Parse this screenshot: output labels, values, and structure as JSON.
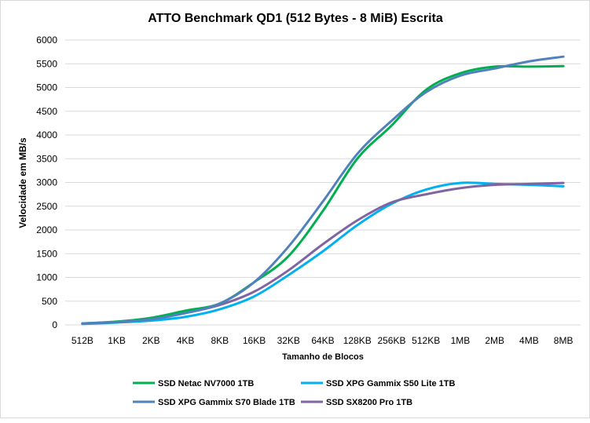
{
  "chart_data": {
    "type": "line",
    "title": "ATTO Benchmark QD1 (512 Bytes - 8 MiB) Escrita",
    "xlabel": "Tamanho de Blocos",
    "ylabel": "Velocidade em MB/s",
    "ylim": [
      0,
      6000
    ],
    "yticks": [
      0,
      500,
      1000,
      1500,
      2000,
      2500,
      3000,
      3500,
      4000,
      4500,
      5000,
      5500,
      6000
    ],
    "grid": true,
    "legend_position": "bottom",
    "categories": [
      "512B",
      "1KB",
      "2KB",
      "4KB",
      "8KB",
      "16KB",
      "32KB",
      "64KB",
      "128KB",
      "256KB",
      "512KB",
      "1MB",
      "2MB",
      "4MB",
      "8MB"
    ],
    "series": [
      {
        "name": "SSD Netac NV7000 1TB",
        "color": "#00B050",
        "values": [
          30,
          70,
          150,
          300,
          450,
          900,
          1450,
          2400,
          3500,
          4200,
          4950,
          5300,
          5440,
          5440,
          5450
        ]
      },
      {
        "name": "SSD XPG Gammix S50 Lite 1TB",
        "color": "#00B0F0",
        "values": [
          20,
          50,
          90,
          170,
          330,
          600,
          1050,
          1550,
          2100,
          2550,
          2850,
          2990,
          2970,
          2950,
          2920
        ]
      },
      {
        "name": "SSD XPG Gammix S70 Blade 1TB",
        "color": "#4F81BD",
        "values": [
          30,
          60,
          120,
          250,
          450,
          900,
          1650,
          2600,
          3600,
          4300,
          4900,
          5250,
          5400,
          5550,
          5650
        ]
      },
      {
        "name": "SSD SX8200 Pro 1TB",
        "color": "#8064A2",
        "values": [
          30,
          60,
          130,
          250,
          420,
          700,
          1150,
          1700,
          2200,
          2580,
          2750,
          2880,
          2950,
          2970,
          2990
        ]
      }
    ]
  }
}
